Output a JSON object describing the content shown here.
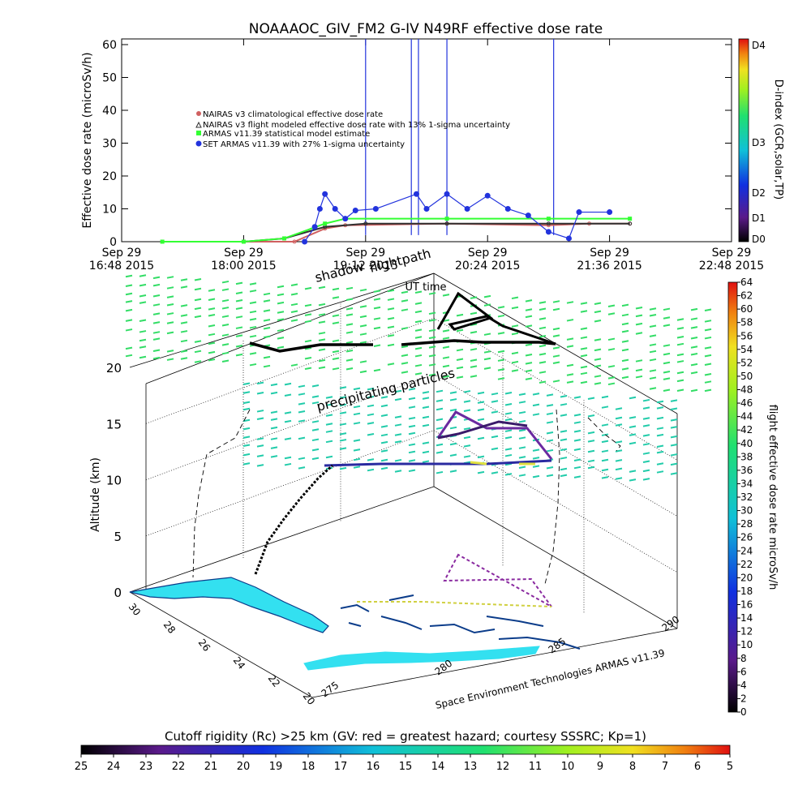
{
  "title": "NOAAAOC_GIV_FM2  G-IV    N49RF  effective dose rate",
  "chart_data": [
    {
      "type": "line",
      "ylabel": "Effective dose rate (microSv/h)",
      "ylim": [
        0,
        60
      ],
      "yticks": [
        "0",
        "10",
        "20",
        "30",
        "40",
        "50",
        "60"
      ],
      "xlabel": "UT time",
      "xlim_hours": [
        16.8,
        22.8
      ],
      "xticks": [
        {
          "t": 16.8,
          "l1": "Sep 29",
          "l2": "16:48 2015"
        },
        {
          "t": 18.0,
          "l1": "Sep 29",
          "l2": "18:00 2015"
        },
        {
          "t": 19.2,
          "l1": "Sep 29",
          "l2": "19:12 2015"
        },
        {
          "t": 20.4,
          "l1": "Sep 29",
          "l2": "20:24 2015"
        },
        {
          "t": 21.6,
          "l1": "Sep 29",
          "l2": "21:36 2015"
        },
        {
          "t": 22.8,
          "l1": "Sep 29",
          "l2": "22:48 2015"
        }
      ],
      "legend": [
        "NAIRAS v3 climatological effective dose rate",
        "NAIRAS v3 flight modeled effective dose rate with 13% 1-sigma uncertainty",
        "ARMAS v11.39 statistical model estimate",
        "SET ARMAS v11.39 with 27% 1-sigma uncertainty"
      ],
      "series": [
        {
          "color": "#d06060",
          "x": [
            17.2,
            18.0,
            18.5,
            18.8,
            19.0,
            20.0,
            21.0,
            21.4,
            21.8
          ],
          "values": [
            0,
            0,
            0,
            4,
            5,
            5.5,
            5,
            5.5,
            5.5
          ]
        },
        {
          "color": "#303030",
          "x": [
            17.2,
            18.0,
            18.4,
            18.8,
            19.2,
            20.0,
            21.0,
            21.8
          ],
          "values": [
            0,
            0,
            1,
            4.5,
            5.5,
            5.5,
            5.5,
            5.5
          ]
        },
        {
          "color": "#33ff33",
          "x": [
            17.2,
            18.0,
            18.4,
            18.8,
            19.0,
            20.0,
            21.0,
            21.8
          ],
          "values": [
            0,
            0,
            1,
            5.5,
            7,
            7,
            7,
            7
          ]
        },
        {
          "color": "#2233dd",
          "x": [
            18.6,
            18.7,
            18.75,
            18.8,
            18.9,
            19.0,
            19.1,
            19.3,
            19.7,
            19.8,
            20.0,
            20.2,
            20.4,
            20.6,
            20.8,
            21.0,
            21.2,
            21.3,
            21.6
          ],
          "values": [
            0,
            4.5,
            10,
            14.5,
            10,
            7,
            9.5,
            10,
            14.5,
            10,
            14.5,
            10,
            14,
            10,
            8,
            3,
            1,
            9,
            9
          ]
        }
      ],
      "spikes_x": [
        19.2,
        19.65,
        19.72,
        20.0,
        21.05
      ],
      "spike_color": "#2233dd"
    },
    {
      "type": "scatter",
      "zlabel": "Altitude (km)",
      "zlim": [
        0,
        20
      ],
      "zticks": [
        "0",
        "5",
        "10",
        "15",
        "20"
      ],
      "lat_ticks": [
        "30",
        "28",
        "26",
        "24",
        "22",
        "20"
      ],
      "lon_ticks": [
        "275",
        "280",
        "285",
        "290"
      ],
      "labels": [
        "flightpath",
        "shadow",
        "precipitating particles"
      ],
      "credit": "Space Environment Technologies ARMAS v11.39"
    }
  ],
  "colorbars": {
    "dindex": {
      "label": "D-index (GCR,solar,TP)",
      "ticks": [
        "D0",
        "D1",
        "D2",
        "D3",
        "D4"
      ]
    },
    "dose": {
      "label": "flight effective dose rate microSv/h",
      "ticks": [
        "0",
        "2",
        "4",
        "6",
        "8",
        "10",
        "12",
        "14",
        "16",
        "18",
        "20",
        "22",
        "24",
        "26",
        "28",
        "30",
        "32",
        "34",
        "36",
        "38",
        "40",
        "42",
        "44",
        "46",
        "48",
        "50",
        "52",
        "54",
        "56",
        "58",
        "60",
        "62",
        "64"
      ]
    },
    "rc": {
      "label": "Cutoff rigidity (Rc) >25 km (GV: red = greatest hazard; courtesy SSSRC; Kp=1)",
      "ticks": [
        "25",
        "24",
        "23",
        "22",
        "21",
        "20",
        "19",
        "18",
        "17",
        "16",
        "15",
        "14",
        "13",
        "12",
        "11",
        "10",
        "9",
        "8",
        "7",
        "6",
        "5"
      ]
    }
  },
  "colors": {
    "green_layer": "#33dd66",
    "cyan_layer": "#22ccaa",
    "land": "#33e0f0"
  }
}
